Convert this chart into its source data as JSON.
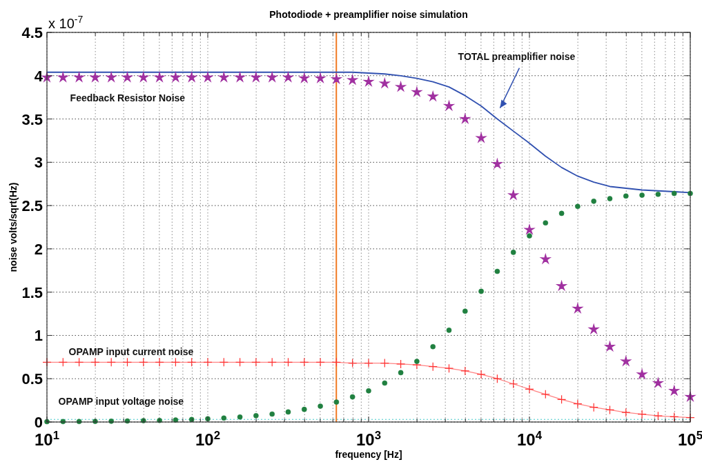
{
  "chart_data": {
    "type": "line",
    "title": "Photodiode + preamplifier  noise simulation",
    "xlabel": "frequency    [Hz]",
    "ylabel": "noise   volts/sqrt(Hz)",
    "annotations": [
      "x 10$^{-7}$"
    ],
    "log": "x",
    "grid": true,
    "legend": false,
    "xlim": [
      10,
      100000
    ],
    "ylim": [
      0,
      4.5
    ],
    "xticks": [
      {
        "value": 10,
        "label": "10$^{1}$"
      },
      {
        "value": 20,
        "label": null
      },
      {
        "value": 30,
        "label": null
      },
      {
        "value": 40,
        "label": null
      },
      {
        "value": 50,
        "label": null
      },
      {
        "value": 60,
        "label": null
      },
      {
        "value": 70,
        "label": null
      },
      {
        "value": 80,
        "label": null
      },
      {
        "value": 90,
        "label": null
      },
      {
        "value": 100,
        "label": "10$^{2}$"
      },
      {
        "value": 200,
        "label": null
      },
      {
        "value": 300,
        "label": null
      },
      {
        "value": 400,
        "label": null
      },
      {
        "value": 500,
        "label": null
      },
      {
        "value": 600,
        "label": null
      },
      {
        "value": 700,
        "label": null
      },
      {
        "value": 800,
        "label": null
      },
      {
        "value": 900,
        "label": null
      },
      {
        "value": 1000,
        "label": "10$^{3}$"
      },
      {
        "value": 2000,
        "label": null
      },
      {
        "value": 3000,
        "label": null
      },
      {
        "value": 4000,
        "label": null
      },
      {
        "value": 5000,
        "label": null
      },
      {
        "value": 6000,
        "label": null
      },
      {
        "value": 7000,
        "label": null
      },
      {
        "value": 8000,
        "label": null
      },
      {
        "value": 9000,
        "label": null
      },
      {
        "value": 10000,
        "label": "10$^{4}$"
      },
      {
        "value": 20000,
        "label": null
      },
      {
        "value": 30000,
        "label": null
      },
      {
        "value": 40000,
        "label": null
      },
      {
        "value": 50000,
        "label": null
      },
      {
        "value": 60000,
        "label": null
      },
      {
        "value": 70000,
        "label": null
      },
      {
        "value": 80000,
        "label": null
      },
      {
        "value": 90000,
        "label": null
      },
      {
        "value": 100000,
        "label": "10$^{5}$"
      }
    ],
    "yticks": [
      0,
      0.5,
      1,
      1.5,
      2,
      2.5,
      3,
      3.5,
      4,
      4.5
    ],
    "x": [
      10,
      12.59,
      15.85,
      19.95,
      25.12,
      31.62,
      39.81,
      50.12,
      63.1,
      79.43,
      100,
      125.9,
      158.5,
      199.5,
      251.2,
      316.2,
      398.1,
      501.2,
      631,
      794.3,
      1000,
      1259,
      1585,
      1995,
      2512,
      3162,
      3981,
      5012,
      6310,
      7943,
      10000,
      12589,
      15849,
      19953,
      25119,
      31623,
      39811,
      50119,
      63096,
      79433,
      100000
    ],
    "ref_lines": [
      {
        "axis": "x",
        "value": 630,
        "color": "#f07820",
        "line_style": "solid"
      },
      {
        "axis": "y",
        "value": 0.03,
        "color": "#40c8c8",
        "line_style": "dotted"
      }
    ],
    "series": [
      {
        "name": "TOTAL preamplifier  noise",
        "color": "#3050b0",
        "marker": "none",
        "line_style": "solid",
        "values": [
          4.04,
          4.04,
          4.04,
          4.04,
          4.04,
          4.04,
          4.04,
          4.04,
          4.04,
          4.04,
          4.04,
          4.04,
          4.04,
          4.04,
          4.04,
          4.04,
          4.04,
          4.04,
          4.04,
          4.04,
          4.03,
          4.02,
          4.0,
          3.97,
          3.93,
          3.87,
          3.77,
          3.65,
          3.5,
          3.36,
          3.22,
          3.07,
          2.94,
          2.84,
          2.77,
          2.72,
          2.7,
          2.68,
          2.67,
          2.66,
          2.65
        ]
      },
      {
        "name": "Feedback Resistor Noise",
        "type": "scatter",
        "color": "#a030a0",
        "marker": "star",
        "values": [
          3.98,
          3.98,
          3.98,
          3.98,
          3.98,
          3.98,
          3.98,
          3.98,
          3.98,
          3.98,
          3.98,
          3.98,
          3.98,
          3.98,
          3.98,
          3.98,
          3.97,
          3.97,
          3.96,
          3.95,
          3.93,
          3.91,
          3.87,
          3.81,
          3.76,
          3.65,
          3.5,
          3.28,
          2.98,
          2.62,
          2.22,
          1.88,
          1.57,
          1.31,
          1.07,
          0.87,
          0.7,
          0.55,
          0.45,
          0.36,
          0.29
        ]
      },
      {
        "name": "OPAMP input current noise",
        "color": "#ff3030",
        "marker": "cross",
        "line_style": "solid",
        "values": [
          0.69,
          0.69,
          0.69,
          0.69,
          0.69,
          0.69,
          0.69,
          0.69,
          0.69,
          0.69,
          0.69,
          0.69,
          0.69,
          0.69,
          0.69,
          0.69,
          0.69,
          0.69,
          0.69,
          0.68,
          0.68,
          0.68,
          0.67,
          0.66,
          0.64,
          0.62,
          0.59,
          0.55,
          0.5,
          0.44,
          0.38,
          0.32,
          0.26,
          0.21,
          0.17,
          0.14,
          0.11,
          0.09,
          0.07,
          0.06,
          0.05
        ]
      },
      {
        "name": "OPAMP input voltage noise",
        "type": "scatter",
        "color": "#208040",
        "marker": "circle",
        "values": [
          0.004,
          0.005,
          0.006,
          0.007,
          0.009,
          0.012,
          0.015,
          0.018,
          0.023,
          0.029,
          0.037,
          0.046,
          0.058,
          0.073,
          0.092,
          0.116,
          0.146,
          0.183,
          0.23,
          0.29,
          0.36,
          0.45,
          0.57,
          0.7,
          0.87,
          1.06,
          1.28,
          1.51,
          1.74,
          1.96,
          2.15,
          2.3,
          2.41,
          2.49,
          2.55,
          2.58,
          2.61,
          2.62,
          2.63,
          2.64,
          2.64
        ]
      }
    ]
  }
}
